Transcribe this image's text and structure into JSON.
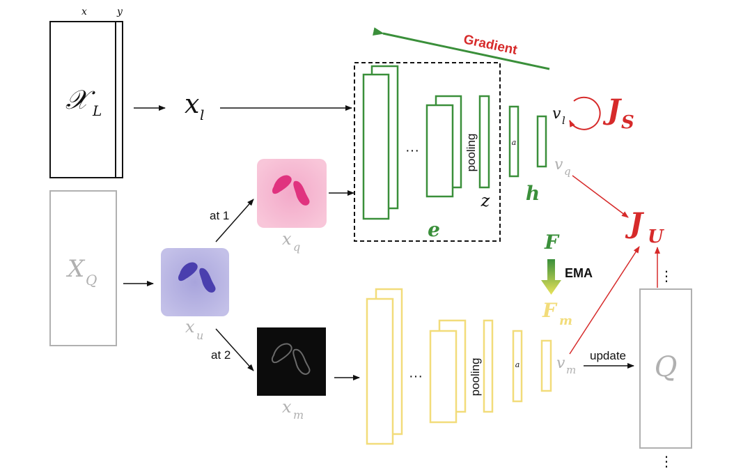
{
  "colors": {
    "green": "#3a8f3a",
    "yellow": "#f2dc7a",
    "gray": "#b0b0b0",
    "red": "#d62a2a",
    "black": "#111111"
  },
  "labeled_set": {
    "x_header": "x",
    "y_header": "y",
    "label": "𝒳",
    "subscript": "L"
  },
  "query_set": {
    "label": "X",
    "subscript": "Q"
  },
  "xl": {
    "label": "x",
    "subscript": "l"
  },
  "xu": {
    "label": "x",
    "subscript": "u"
  },
  "xq": {
    "label": "x",
    "subscript": "q"
  },
  "xm": {
    "label": "x",
    "subscript": "m"
  },
  "augment": {
    "at1": "at 1",
    "at2": "at 2"
  },
  "gradient_label": "Gradient",
  "encoder": {
    "ellipsis": "···",
    "pooling": "pooling",
    "a_label": "a",
    "z_label": "z",
    "h_label": "h",
    "e_label": "e"
  },
  "momentum_encoder": {
    "ellipsis": "···",
    "pooling": "pooling",
    "a_label": "a"
  },
  "vl": {
    "label": "v",
    "subscript": "l"
  },
  "vq": {
    "label": "v",
    "subscript": "q"
  },
  "vm": {
    "label": "v",
    "subscript": "m"
  },
  "JS": {
    "label": "J",
    "subscript": "S"
  },
  "JU": {
    "label": "J",
    "subscript": "U"
  },
  "F_label": "F",
  "Fm": {
    "label": "F",
    "subscript": "m"
  },
  "ema_label": "EMA",
  "update_label": "update",
  "queue": {
    "label": "Q",
    "dots_top": "⋮",
    "dots_bottom": "⋮"
  }
}
